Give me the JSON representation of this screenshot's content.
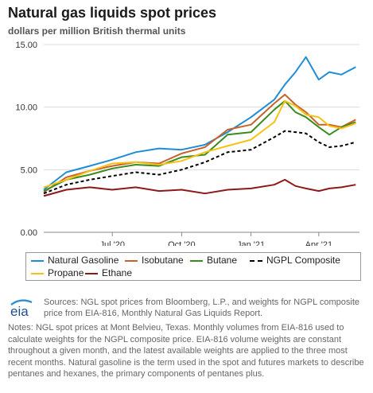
{
  "header": {
    "title": "Natural gas liquids spot prices",
    "subtitle": "dollars per million British thermal units"
  },
  "chart_data": {
    "type": "line",
    "title": "Natural gas liquids spot prices",
    "ylabel": "dollars per million British thermal units",
    "ylim": [
      0,
      15
    ],
    "yticks": [
      "15.00",
      "10.00",
      "5.00",
      "0.00"
    ],
    "ytick_values": [
      15,
      10,
      5,
      0
    ],
    "xticks": [
      "Jul '20",
      "Oct '20",
      "Jan '21",
      "Apr '21"
    ],
    "xtick_dates": [
      "2020-07-01",
      "2020-10-01",
      "2021-01-01",
      "2021-04-01"
    ],
    "xlim": [
      "2020-04-01",
      "2021-05-25"
    ],
    "grid": true,
    "legend_position": "bottom",
    "x": [
      "2020-04-01",
      "2020-05-01",
      "2020-06-01",
      "2020-07-01",
      "2020-08-01",
      "2020-09-01",
      "2020-10-01",
      "2020-11-01",
      "2020-12-01",
      "2021-01-01",
      "2021-02-01",
      "2021-02-15",
      "2021-03-01",
      "2021-03-15",
      "2021-04-01",
      "2021-04-15",
      "2021-05-01",
      "2021-05-20"
    ],
    "series": [
      {
        "name": "Natural Gasoline",
        "color": "#1f8dd6",
        "dash": "none",
        "values": [
          3.4,
          4.8,
          5.3,
          5.8,
          6.4,
          6.7,
          6.6,
          7.0,
          8.0,
          9.2,
          10.6,
          11.8,
          12.8,
          14.0,
          12.2,
          12.8,
          12.6,
          13.2
        ]
      },
      {
        "name": "Isobutane",
        "color": "#c8612a",
        "dash": "none",
        "values": [
          3.2,
          4.4,
          4.9,
          5.3,
          5.6,
          5.5,
          6.3,
          6.8,
          8.2,
          8.6,
          10.3,
          11.0,
          10.2,
          9.6,
          8.6,
          8.6,
          8.4,
          9.0
        ]
      },
      {
        "name": "Butane",
        "color": "#3a8c1e",
        "dash": "none",
        "values": [
          3.3,
          4.2,
          4.6,
          5.1,
          5.4,
          5.3,
          6.0,
          6.2,
          7.8,
          8.0,
          9.8,
          10.5,
          9.6,
          9.2,
          8.4,
          7.8,
          8.4,
          8.8
        ]
      },
      {
        "name": "NGPL Composite",
        "color": "#000000",
        "dash": "4,3",
        "values": [
          3.1,
          3.8,
          4.2,
          4.5,
          4.8,
          4.6,
          5.0,
          5.6,
          6.4,
          6.6,
          7.6,
          8.1,
          8.0,
          7.9,
          7.2,
          6.8,
          6.9,
          7.2
        ]
      },
      {
        "name": "Propane",
        "color": "#f5c116",
        "dash": "none",
        "values": [
          3.6,
          4.2,
          4.9,
          5.5,
          5.6,
          5.4,
          5.7,
          6.4,
          6.9,
          7.4,
          8.8,
          10.5,
          10.1,
          9.4,
          9.2,
          8.5,
          8.3,
          8.7
        ]
      },
      {
        "name": "Ethane",
        "color": "#8c1a1a",
        "dash": "none",
        "values": [
          2.9,
          3.4,
          3.6,
          3.4,
          3.6,
          3.3,
          3.4,
          3.1,
          3.4,
          3.5,
          3.8,
          4.2,
          3.7,
          3.5,
          3.3,
          3.5,
          3.6,
          3.8
        ]
      }
    ]
  },
  "legend": {
    "row1": [
      "Natural Gasoline",
      "Isobutane",
      "Butane",
      "NGPL Composite"
    ],
    "row2": [
      "Propane",
      "Ethane"
    ]
  },
  "footer": {
    "logo_text": "eia",
    "sources": "Sources: NGL spot prices from Bloomberg, L.P., and weights for NGPL composite price from EIA-816, Monthly Natural Gas Liquids Report.",
    "notes": "Notes: NGL spot prices at Mont Belvieu, Texas. Monthly volumes from EIA-816 used to calculate weights for the NGPL composite price. EIA-816 volume weights are constant throughout a given month, and the latest available weights are applied to the three most recent months. Natural gasoline is the term used in the spot and futures markets to describe pentanes and hexanes, the primary components of pentanes plus."
  }
}
